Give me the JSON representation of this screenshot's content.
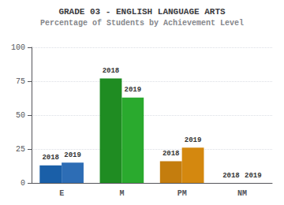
{
  "chart_data": {
    "type": "bar",
    "title": "GRADE 03 - ENGLISH LANGUAGE ARTS",
    "subtitle": "Percentage of Students by Achievement Level",
    "categories": [
      "E",
      "M",
      "PM",
      "NM"
    ],
    "series": [
      {
        "name": "2018",
        "values": [
          13,
          77,
          16,
          0
        ],
        "colors": [
          "#1a5fa8",
          "#1f8c22",
          "#c47d0e",
          "#c47d0e"
        ]
      },
      {
        "name": "2019",
        "values": [
          15,
          63,
          26,
          0
        ],
        "colors": [
          "#2d6db5",
          "#2aaa2e",
          "#d4880f",
          "#d4880f"
        ]
      }
    ],
    "ylim": [
      0,
      100
    ],
    "yticks": [
      0,
      25,
      50,
      75,
      100
    ],
    "grid": true
  }
}
